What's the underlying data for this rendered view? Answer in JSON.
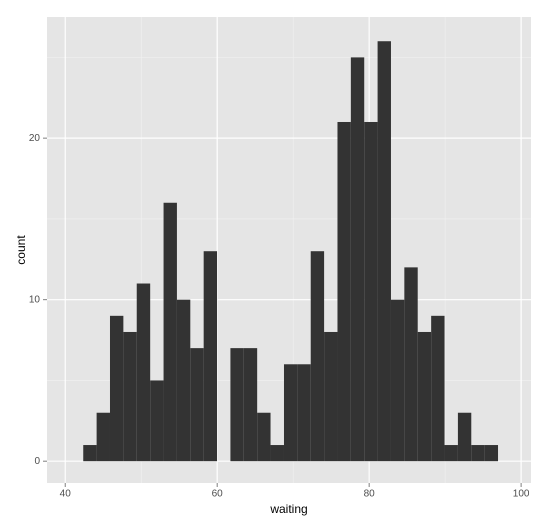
{
  "chart_data": {
    "type": "histogram",
    "x_label": "waiting",
    "y_label": "count",
    "bins": [
      42.37,
      44.13,
      45.89,
      47.65,
      49.41,
      51.18,
      52.94,
      54.7,
      56.46,
      58.22,
      59.98,
      61.74,
      63.5,
      65.26,
      67.02,
      68.79,
      70.55,
      72.31,
      74.07,
      75.83,
      77.59,
      79.35,
      81.11,
      82.87,
      84.63,
      86.39,
      88.16,
      89.92,
      91.68,
      93.44,
      95.2,
      96.96
    ],
    "values": [
      1,
      3,
      9,
      8,
      11,
      5,
      16,
      10,
      7,
      13,
      0,
      7,
      7,
      3,
      1,
      6,
      6,
      13,
      8,
      21,
      25,
      21,
      26,
      10,
      12,
      8,
      9,
      1,
      3,
      1,
      1
    ],
    "color": "#333333",
    "xlim": [
      37.6,
      101.3
    ],
    "ylim": [
      -1.35,
      27.5
    ],
    "xticks": [
      40,
      60,
      80,
      100
    ],
    "yticks": [
      0,
      10,
      20
    ],
    "minor_xticks": [
      50,
      70,
      90
    ],
    "minor_yticks": [
      5,
      15,
      25
    ],
    "grid": true
  }
}
